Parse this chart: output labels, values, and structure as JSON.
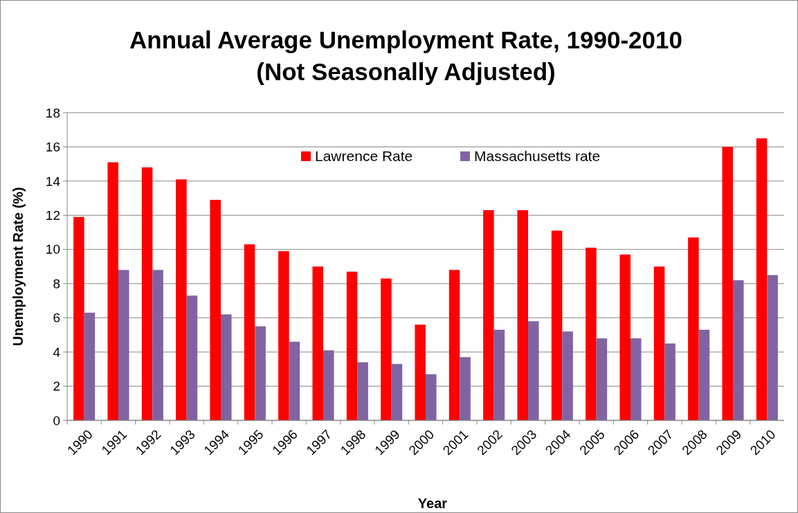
{
  "chart_data": {
    "type": "bar",
    "title": "Annual Average Unemployment Rate, 1990-2010\n(Not Seasonally Adjusted)",
    "xlabel": "Year",
    "ylabel": "Unemployment Rate (%)",
    "categories": [
      "1990",
      "1991",
      "1992",
      "1993",
      "1994",
      "1995",
      "1996",
      "1997",
      "1998",
      "1999",
      "2000",
      "2001",
      "2002",
      "2003",
      "2004",
      "2005",
      "2006",
      "2007",
      "2008",
      "2009",
      "2010"
    ],
    "series": [
      {
        "name": "Lawrence Rate",
        "color": "#ff0000",
        "values": [
          11.9,
          15.1,
          14.8,
          14.1,
          12.9,
          10.3,
          9.9,
          9.0,
          8.7,
          8.3,
          5.6,
          8.8,
          12.3,
          12.3,
          11.1,
          10.1,
          9.7,
          9.0,
          10.7,
          16.0,
          16.5
        ]
      },
      {
        "name": "Massachusetts rate",
        "color": "#8064a2",
        "values": [
          6.3,
          8.8,
          8.8,
          7.3,
          6.2,
          5.5,
          4.6,
          4.1,
          3.4,
          3.3,
          2.7,
          3.7,
          5.3,
          5.8,
          5.2,
          4.8,
          4.8,
          4.5,
          5.3,
          8.2,
          8.5
        ]
      }
    ],
    "ylim": [
      0,
      18
    ],
    "yticks": [
      0,
      2,
      4,
      6,
      8,
      10,
      12,
      14,
      16,
      18
    ],
    "grid": "y",
    "legend": "top"
  }
}
